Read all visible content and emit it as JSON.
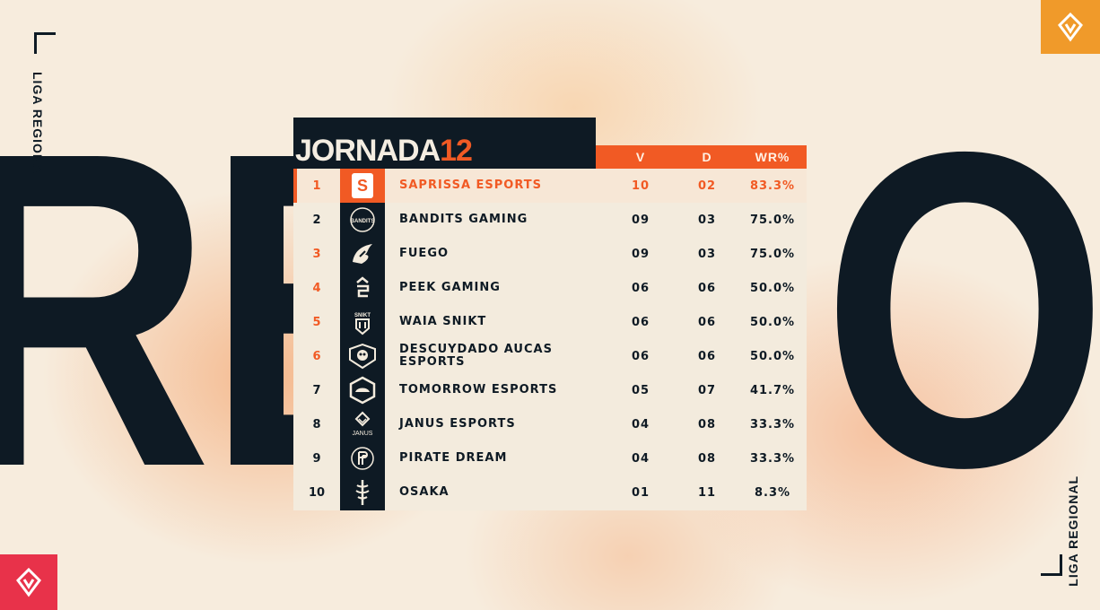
{
  "background": {
    "big_word": "REGIONAL",
    "side_text_left": "LIGA REGIONAL",
    "side_text_right": "LIGA REGIONAL"
  },
  "header": {
    "title_word": "JORNADA",
    "title_number": "12"
  },
  "columns": {
    "wins": "V",
    "losses": "D",
    "winrate": "WR%"
  },
  "rows": [
    {
      "rank": "1",
      "team": "SAPRISSA ESPORTS",
      "v": "10",
      "d": "02",
      "wr": "83.3%",
      "icon": "saprissa-logo-icon"
    },
    {
      "rank": "2",
      "team": "BANDITS GAMING",
      "v": "09",
      "d": "03",
      "wr": "75.0%",
      "icon": "bandits-logo-icon",
      "logo_text": "BANDITS"
    },
    {
      "rank": "3",
      "team": "FUEGO",
      "v": "09",
      "d": "03",
      "wr": "75.0%",
      "icon": "fuego-logo-icon"
    },
    {
      "rank": "4",
      "team": "PEEK GAMING",
      "v": "06",
      "d": "06",
      "wr": "50.0%",
      "icon": "peek-logo-icon"
    },
    {
      "rank": "5",
      "team": "WAIA SNIKT",
      "v": "06",
      "d": "06",
      "wr": "50.0%",
      "icon": "snikt-logo-icon",
      "logo_text": "SNIKT"
    },
    {
      "rank": "6",
      "team": "DESCUYDADO AUCAS ESPORTS",
      "v": "06",
      "d": "06",
      "wr": "50.0%",
      "icon": "aucas-logo-icon"
    },
    {
      "rank": "7",
      "team": "TOMORROW ESPORTS",
      "v": "05",
      "d": "07",
      "wr": "41.7%",
      "icon": "tomorrow-logo-icon"
    },
    {
      "rank": "8",
      "team": "JANUS ESPORTS",
      "v": "04",
      "d": "08",
      "wr": "33.3%",
      "icon": "janus-logo-icon",
      "logo_text": "JANUS"
    },
    {
      "rank": "9",
      "team": "PIRATE DREAM",
      "v": "04",
      "d": "08",
      "wr": "33.3%",
      "icon": "pirate-dream-logo-icon"
    },
    {
      "rank": "10",
      "team": "OSAKA",
      "v": "01",
      "d": "11",
      "wr": "8.3%",
      "icon": "osaka-logo-icon"
    }
  ],
  "colors": {
    "accent": "#f15a24",
    "dark": "#0e1a24",
    "cream": "#f3ebdd",
    "logo_orange": "#f09a2a",
    "logo_red": "#e8324a"
  }
}
